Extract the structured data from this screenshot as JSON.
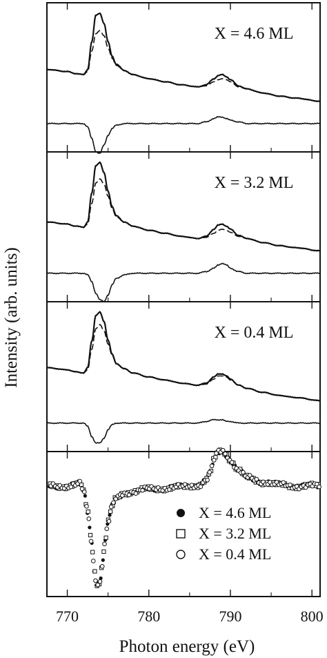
{
  "chart_data": {
    "type": "line",
    "xlabel": "Photon energy (eV)",
    "ylabel": "Intensity (arb. units)",
    "xlim": [
      767.5,
      801
    ],
    "xticks": [
      770,
      780,
      790,
      800
    ],
    "panels": [
      {
        "label": "X = 4.6 ML",
        "series": [
          {
            "name": "",
            "style": "solid",
            "x": [
              767.5,
              770,
              771,
              772,
              772.5,
              773,
              773.5,
              774,
              774.5,
              775,
              775.5,
              776,
              777,
              778,
              780,
              782,
              784,
              786,
              787,
              788,
              788.5,
              789,
              789.5,
              790,
              791,
              792,
              794,
              796,
              798,
              801
            ],
            "y": [
              0.45,
              0.43,
              0.41,
              0.4,
              0.45,
              0.72,
              0.98,
              1.0,
              0.9,
              0.72,
              0.58,
              0.5,
              0.44,
              0.4,
              0.36,
              0.33,
              0.3,
              0.28,
              0.3,
              0.36,
              0.39,
              0.4,
              0.38,
              0.35,
              0.29,
              0.26,
              0.22,
              0.19,
              0.17,
              0.14
            ]
          },
          {
            "name": "",
            "style": "dashed",
            "x": [
              767.5,
              770,
              771,
              772,
              772.5,
              773,
              773.5,
              774,
              774.5,
              775,
              775.5,
              776,
              777,
              778,
              780,
              782,
              784,
              786,
              787,
              788,
              788.5,
              789,
              789.5,
              790,
              791,
              792,
              794,
              796,
              798,
              801
            ],
            "y": [
              0.45,
              0.43,
              0.41,
              0.4,
              0.43,
              0.63,
              0.8,
              0.83,
              0.78,
              0.66,
              0.56,
              0.49,
              0.44,
              0.4,
              0.36,
              0.33,
              0.3,
              0.28,
              0.29,
              0.33,
              0.35,
              0.36,
              0.35,
              0.33,
              0.28,
              0.26,
              0.22,
              0.19,
              0.17,
              0.14
            ]
          },
          {
            "name": "",
            "style": "difference",
            "x": [
              767.5,
              770,
              771,
              772,
              772.5,
              773,
              773.5,
              774,
              774.5,
              775,
              775.5,
              776,
              777,
              778,
              780,
              782,
              784,
              786,
              787,
              788,
              788.5,
              789,
              789.5,
              790,
              791,
              792,
              794,
              796,
              798,
              801
            ],
            "y": [
              0.0,
              0.0,
              0.0,
              0.0,
              -0.02,
              -0.09,
              -0.17,
              -0.18,
              -0.13,
              -0.07,
              -0.03,
              -0.01,
              0.0,
              0.0,
              0.0,
              0.0,
              0.0,
              0.0,
              0.01,
              0.03,
              0.04,
              0.04,
              0.03,
              0.02,
              0.01,
              0.0,
              0.0,
              0.0,
              0.0,
              0.0
            ]
          }
        ]
      },
      {
        "label": "X = 3.2 ML",
        "series": [
          {
            "name": "",
            "style": "solid",
            "x": [
              767.5,
              770,
              771,
              772,
              772.5,
              773,
              773.5,
              774,
              774.5,
              775,
              775.5,
              776,
              777,
              778,
              780,
              782,
              784,
              786,
              787,
              788,
              788.5,
              789,
              789.5,
              790,
              791,
              792,
              794,
              796,
              798,
              801
            ],
            "y": [
              0.42,
              0.4,
              0.38,
              0.37,
              0.42,
              0.7,
              0.97,
              1.0,
              0.9,
              0.72,
              0.57,
              0.48,
              0.42,
              0.38,
              0.34,
              0.31,
              0.28,
              0.26,
              0.28,
              0.35,
              0.39,
              0.4,
              0.38,
              0.35,
              0.29,
              0.26,
              0.22,
              0.19,
              0.17,
              0.14
            ]
          },
          {
            "name": "",
            "style": "dashed",
            "x": [
              767.5,
              770,
              771,
              772,
              772.5,
              773,
              773.5,
              774,
              774.5,
              775,
              775.5,
              776,
              777,
              778,
              780,
              782,
              784,
              786,
              787,
              788,
              788.5,
              789,
              789.5,
              790,
              791,
              792,
              794,
              796,
              798,
              801
            ],
            "y": [
              0.42,
              0.4,
              0.38,
              0.37,
              0.4,
              0.6,
              0.8,
              0.84,
              0.79,
              0.67,
              0.55,
              0.47,
              0.42,
              0.38,
              0.34,
              0.31,
              0.28,
              0.26,
              0.27,
              0.31,
              0.34,
              0.35,
              0.34,
              0.32,
              0.28,
              0.26,
              0.22,
              0.19,
              0.17,
              0.14
            ]
          },
          {
            "name": "",
            "style": "difference",
            "x": [
              767.5,
              770,
              771,
              772,
              772.5,
              773,
              773.5,
              774,
              774.5,
              775,
              775.5,
              776,
              777,
              778,
              780,
              782,
              784,
              786,
              787,
              788,
              788.5,
              789,
              789.5,
              790,
              791,
              792,
              794,
              796,
              798,
              801
            ],
            "y": [
              0.0,
              0.0,
              0.0,
              0.0,
              -0.01,
              -0.05,
              -0.12,
              -0.16,
              -0.17,
              -0.13,
              -0.07,
              -0.03,
              -0.01,
              0.0,
              0.0,
              0.0,
              0.0,
              0.0,
              0.01,
              0.03,
              0.05,
              0.06,
              0.05,
              0.03,
              0.01,
              0.0,
              0.0,
              0.0,
              0.0,
              0.0
            ]
          }
        ]
      },
      {
        "label": "X = 0.4 ML",
        "series": [
          {
            "name": "",
            "style": "solid",
            "x": [
              767.5,
              770,
              771,
              772,
              772.5,
              773,
              773.5,
              774,
              774.5,
              775,
              775.5,
              776,
              777,
              778,
              780,
              782,
              784,
              786,
              787,
              788,
              788.5,
              789,
              789.5,
              790,
              791,
              792,
              794,
              796,
              798,
              801
            ],
            "y": [
              0.46,
              0.44,
              0.42,
              0.41,
              0.46,
              0.72,
              0.97,
              1.0,
              0.91,
              0.73,
              0.59,
              0.5,
              0.45,
              0.41,
              0.37,
              0.34,
              0.31,
              0.29,
              0.31,
              0.37,
              0.4,
              0.4,
              0.38,
              0.35,
              0.29,
              0.26,
              0.22,
              0.19,
              0.17,
              0.14
            ]
          },
          {
            "name": "",
            "style": "dashed",
            "x": [
              767.5,
              770,
              771,
              772,
              772.5,
              773,
              773.5,
              774,
              774.5,
              775,
              775.5,
              776,
              777,
              778,
              780,
              782,
              784,
              786,
              787,
              788,
              788.5,
              789,
              789.5,
              790,
              791,
              792,
              794,
              796,
              798,
              801
            ],
            "y": [
              0.46,
              0.44,
              0.42,
              0.41,
              0.44,
              0.64,
              0.84,
              0.88,
              0.82,
              0.69,
              0.58,
              0.5,
              0.45,
              0.41,
              0.37,
              0.34,
              0.31,
              0.29,
              0.3,
              0.35,
              0.38,
              0.38,
              0.37,
              0.34,
              0.29,
              0.26,
              0.22,
              0.19,
              0.17,
              0.14
            ]
          },
          {
            "name": "",
            "style": "difference",
            "x": [
              767.5,
              770,
              771,
              772,
              772.5,
              773,
              773.5,
              774,
              774.5,
              775,
              775.5,
              776,
              777,
              778,
              780,
              782,
              784,
              786,
              787,
              788,
              788.5,
              789,
              789.5,
              790,
              791,
              792,
              794,
              796,
              798,
              801
            ],
            "y": [
              0.0,
              0.0,
              0.0,
              0.0,
              -0.02,
              -0.08,
              -0.12,
              -0.12,
              -0.09,
              -0.04,
              -0.01,
              0.0,
              0.0,
              0.0,
              0.0,
              0.0,
              0.0,
              0.0,
              0.01,
              0.02,
              0.02,
              0.02,
              0.01,
              0.01,
              0.0,
              0.0,
              0.0,
              0.0,
              0.0,
              0.0
            ]
          }
        ]
      }
    ],
    "bottom_panel": {
      "type": "scatter",
      "legend_position": "bottom-right",
      "legend": [
        {
          "label": "X = 4.6 ML",
          "marker": "filled-circle"
        },
        {
          "label": "X = 3.2 ML",
          "marker": "open-square"
        },
        {
          "label": "X = 0.4 ML",
          "marker": "open-circle"
        }
      ],
      "curve": {
        "x": [
          767.5,
          769,
          770,
          771,
          771.5,
          772,
          772.5,
          773,
          773.3,
          773.6,
          774,
          774.3,
          774.6,
          775,
          775.5,
          776,
          777,
          778,
          780,
          782,
          784,
          786,
          787,
          787.5,
          788,
          788.5,
          789,
          789.5,
          790,
          791,
          792,
          794,
          796,
          798,
          801
        ],
        "y": [
          0.0,
          0.0,
          0.0,
          0.01,
          0.02,
          -0.05,
          -0.25,
          -0.55,
          -0.8,
          -0.95,
          -0.92,
          -0.75,
          -0.55,
          -0.35,
          -0.2,
          -0.12,
          -0.07,
          -0.05,
          -0.03,
          -0.02,
          -0.01,
          0.01,
          0.05,
          0.12,
          0.25,
          0.33,
          0.34,
          0.31,
          0.25,
          0.15,
          0.08,
          0.04,
          0.01,
          0.0,
          0.0
        ]
      }
    }
  }
}
